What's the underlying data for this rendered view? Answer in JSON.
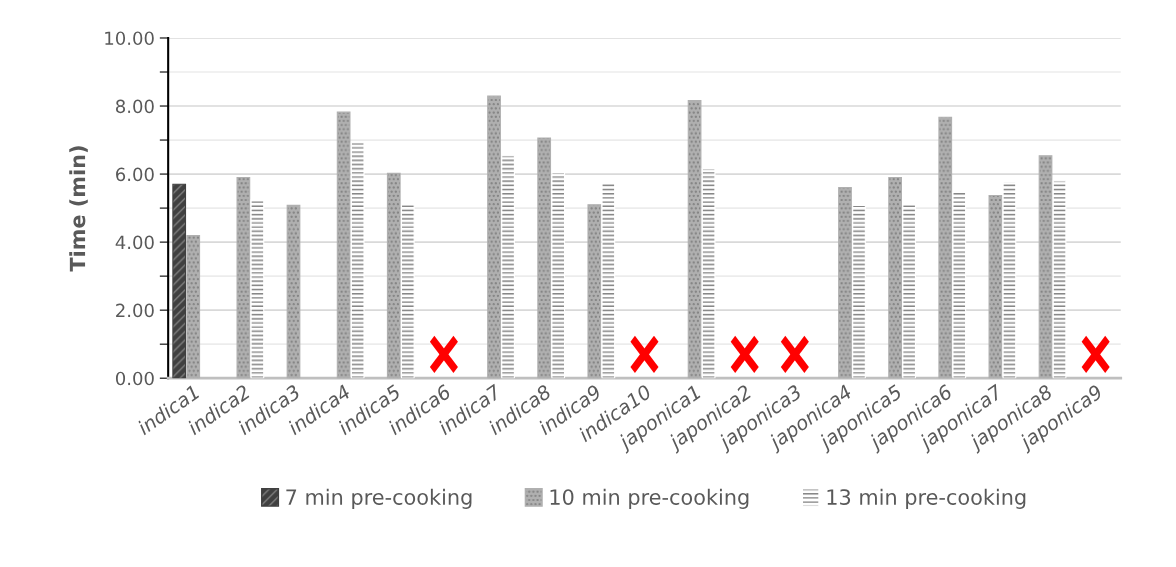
{
  "chart_data": {
    "type": "bar",
    "ylabel": "Time (min)",
    "categories": [
      "indica1",
      "indica2",
      "indica3",
      "indica4",
      "indica5",
      "indica6",
      "indica7",
      "indica8",
      "indica9",
      "indica10",
      "japonica1",
      "japonica2",
      "japonica3",
      "japonica4",
      "japonica5",
      "japonica6",
      "japonica7",
      "japonica8",
      "japonica9"
    ],
    "series": [
      {
        "name": "7 min pre-cooking",
        "color": "#404040",
        "values": [
          5.7,
          null,
          null,
          null,
          null,
          null,
          null,
          null,
          null,
          null,
          null,
          null,
          null,
          null,
          null,
          null,
          null,
          null,
          null
        ]
      },
      {
        "name": "10 min pre-cooking",
        "color": "#b0b0b0",
        "values": [
          4.19,
          5.9,
          5.08,
          7.82,
          6.02,
          null,
          8.29,
          7.06,
          5.1,
          null,
          8.16,
          null,
          null,
          5.6,
          5.9,
          7.67,
          5.37,
          6.54,
          null
        ]
      },
      {
        "name": "13 min pre-cooking",
        "color": "#ffffff",
        "values": [
          null,
          5.24,
          null,
          6.92,
          5.1,
          null,
          6.54,
          6.05,
          5.74,
          null,
          6.16,
          null,
          null,
          5.08,
          5.1,
          5.46,
          5.77,
          5.8,
          null
        ]
      }
    ],
    "ylim": [
      0,
      10
    ],
    "yticks": [
      {
        "value": 0,
        "label": "0.00"
      },
      {
        "value": 1,
        "label": null
      },
      {
        "value": 2,
        "label": "2.00"
      },
      {
        "value": 3,
        "label": null
      },
      {
        "value": 4,
        "label": "4.00"
      },
      {
        "value": 5,
        "label": null
      },
      {
        "value": 6,
        "label": "6.00"
      },
      {
        "value": 7,
        "label": null
      },
      {
        "value": 8,
        "label": "8.00"
      },
      {
        "value": 9,
        "label": null
      },
      {
        "value": 10,
        "label": "10.00"
      }
    ],
    "grid": "y",
    "legend": "bottom"
  }
}
